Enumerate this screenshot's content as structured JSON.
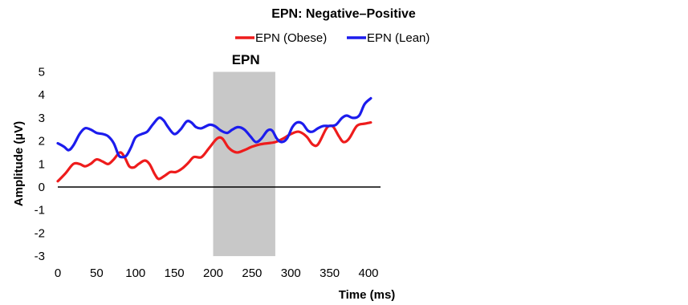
{
  "chart_data": {
    "type": "line",
    "title": "EPN: Negative–Positive",
    "xlabel": "Time (ms)",
    "ylabel": "Amplitude (µV)",
    "xlim": [
      0,
      400
    ],
    "ylim": [
      -3,
      5
    ],
    "x_ticks": [
      "0",
      "50",
      "100",
      "150",
      "200",
      "250",
      "300",
      "350",
      "400"
    ],
    "y_ticks": [
      "5",
      "4",
      "3",
      "2",
      "1",
      "0",
      "-1",
      "-2",
      "-3"
    ],
    "grid": false,
    "legend_position": "top",
    "shaded_region": {
      "label": "EPN",
      "x_start": 200,
      "x_end": 280,
      "color": "#c8c8c8"
    },
    "series": [
      {
        "name": "EPN (Obese)",
        "color": "#ee1c1c",
        "points": [
          [
            0,
            0.25
          ],
          [
            10,
            0.6
          ],
          [
            20,
            1.0
          ],
          [
            28,
            1.0
          ],
          [
            35,
            0.9
          ],
          [
            42,
            1.0
          ],
          [
            50,
            1.2
          ],
          [
            58,
            1.1
          ],
          [
            65,
            1.0
          ],
          [
            72,
            1.2
          ],
          [
            80,
            1.5
          ],
          [
            86,
            1.3
          ],
          [
            92,
            0.9
          ],
          [
            98,
            0.85
          ],
          [
            104,
            1.0
          ],
          [
            112,
            1.15
          ],
          [
            118,
            1.0
          ],
          [
            125,
            0.55
          ],
          [
            130,
            0.35
          ],
          [
            138,
            0.5
          ],
          [
            145,
            0.65
          ],
          [
            152,
            0.65
          ],
          [
            160,
            0.8
          ],
          [
            168,
            1.05
          ],
          [
            175,
            1.3
          ],
          [
            185,
            1.3
          ],
          [
            195,
            1.7
          ],
          [
            205,
            2.1
          ],
          [
            212,
            2.1
          ],
          [
            220,
            1.7
          ],
          [
            230,
            1.5
          ],
          [
            240,
            1.6
          ],
          [
            250,
            1.75
          ],
          [
            260,
            1.85
          ],
          [
            270,
            1.9
          ],
          [
            280,
            1.95
          ],
          [
            290,
            2.1
          ],
          [
            300,
            2.3
          ],
          [
            310,
            2.4
          ],
          [
            320,
            2.2
          ],
          [
            328,
            1.85
          ],
          [
            335,
            1.85
          ],
          [
            345,
            2.5
          ],
          [
            350,
            2.65
          ],
          [
            355,
            2.6
          ],
          [
            362,
            2.2
          ],
          [
            368,
            1.95
          ],
          [
            375,
            2.1
          ],
          [
            385,
            2.65
          ],
          [
            395,
            2.75
          ],
          [
            403,
            2.8
          ]
        ]
      },
      {
        "name": "EPN (Lean)",
        "color": "#1c1ced",
        "points": [
          [
            0,
            1.9
          ],
          [
            8,
            1.75
          ],
          [
            14,
            1.6
          ],
          [
            20,
            1.8
          ],
          [
            28,
            2.3
          ],
          [
            35,
            2.55
          ],
          [
            42,
            2.5
          ],
          [
            50,
            2.35
          ],
          [
            58,
            2.3
          ],
          [
            65,
            2.2
          ],
          [
            72,
            1.9
          ],
          [
            78,
            1.4
          ],
          [
            82,
            1.3
          ],
          [
            88,
            1.35
          ],
          [
            94,
            1.7
          ],
          [
            100,
            2.15
          ],
          [
            108,
            2.3
          ],
          [
            115,
            2.4
          ],
          [
            122,
            2.7
          ],
          [
            130,
            3.0
          ],
          [
            136,
            2.9
          ],
          [
            142,
            2.6
          ],
          [
            150,
            2.3
          ],
          [
            158,
            2.5
          ],
          [
            166,
            2.85
          ],
          [
            172,
            2.8
          ],
          [
            178,
            2.6
          ],
          [
            185,
            2.55
          ],
          [
            195,
            2.7
          ],
          [
            202,
            2.65
          ],
          [
            210,
            2.45
          ],
          [
            218,
            2.35
          ],
          [
            225,
            2.5
          ],
          [
            232,
            2.6
          ],
          [
            240,
            2.5
          ],
          [
            248,
            2.2
          ],
          [
            255,
            1.95
          ],
          [
            262,
            2.1
          ],
          [
            270,
            2.45
          ],
          [
            276,
            2.45
          ],
          [
            282,
            2.1
          ],
          [
            288,
            1.95
          ],
          [
            295,
            2.1
          ],
          [
            302,
            2.6
          ],
          [
            308,
            2.8
          ],
          [
            315,
            2.75
          ],
          [
            322,
            2.45
          ],
          [
            328,
            2.4
          ],
          [
            335,
            2.55
          ],
          [
            342,
            2.65
          ],
          [
            350,
            2.65
          ],
          [
            358,
            2.7
          ],
          [
            366,
            3.0
          ],
          [
            372,
            3.1
          ],
          [
            380,
            3.0
          ],
          [
            388,
            3.1
          ],
          [
            395,
            3.6
          ],
          [
            403,
            3.85
          ]
        ]
      }
    ]
  }
}
